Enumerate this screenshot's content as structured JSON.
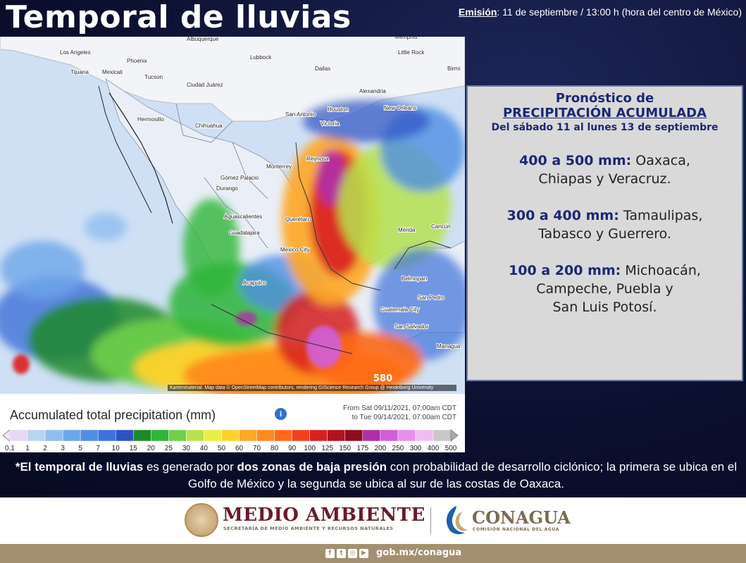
{
  "header": {
    "title": "Temporal de lluvias",
    "emission_label": "Emisión",
    "emission_text": ": 11 de septiembre / 13:00 h (hora del centro de México)"
  },
  "map": {
    "cities": [
      {
        "name": "Los Angeles"
      },
      {
        "name": "Phoenix"
      },
      {
        "name": "Tijuana"
      },
      {
        "name": "Mexicali"
      },
      {
        "name": "Tucson"
      },
      {
        "name": "Albuquerque"
      },
      {
        "name": "Lubbock"
      },
      {
        "name": "Ciudad Juárez"
      },
      {
        "name": "Dallas"
      },
      {
        "name": "Memphis"
      },
      {
        "name": "Little Rock"
      },
      {
        "name": "Hermosillo"
      },
      {
        "name": "Chihuahua"
      },
      {
        "name": "San Antonio"
      },
      {
        "name": "Houston"
      },
      {
        "name": "Alexandria"
      },
      {
        "name": "New Orleans"
      },
      {
        "name": "Victoria"
      },
      {
        "name": "Reynosa"
      },
      {
        "name": "Monterrey"
      },
      {
        "name": "Gómez Palacio"
      },
      {
        "name": "Durango"
      },
      {
        "name": "Aguascalientes"
      },
      {
        "name": "Guadalajara"
      },
      {
        "name": "Querétaro"
      },
      {
        "name": "Mexico City"
      },
      {
        "name": "Acapulco"
      },
      {
        "name": "Mérida"
      },
      {
        "name": "Cancún"
      },
      {
        "name": "Belmopan"
      },
      {
        "name": "San Pedro"
      },
      {
        "name": "Guatemala City"
      },
      {
        "name": "San Salvador"
      },
      {
        "name": "Managua"
      },
      {
        "name": "Birmi"
      }
    ],
    "attribution": "Kartenmaterial: Map data © OpenStreetMap contributors, rendering GIScience Research Group @ Heidelberg University",
    "stamp": "580"
  },
  "legend": {
    "title": "Accumulated total precipitation (mm)",
    "from": "From Sat 09/11/2021, 07:00am CDT",
    "to": "to Tue 09/14/2021, 07:00am CDT",
    "ticks": [
      "0.1",
      "1",
      "2",
      "3",
      "5",
      "7",
      "10",
      "15",
      "20",
      "25",
      "30",
      "40",
      "50",
      "60",
      "70",
      "80",
      "90",
      "100",
      "125",
      "150",
      "175",
      "200",
      "250",
      "300",
      "400",
      "500"
    ],
    "colors": [
      "#e8d8f5",
      "#b9d3f2",
      "#8fbdf0",
      "#6ea6ea",
      "#4f8ee3",
      "#3f72d8",
      "#2d52c2",
      "#1c8a2a",
      "#2fb53a",
      "#6fd04a",
      "#b6e34d",
      "#e9ef45",
      "#ffd22d",
      "#ffa726",
      "#ff8a1f",
      "#ff6a1a",
      "#f2411a",
      "#d8201f",
      "#b5121c",
      "#8e0c1d",
      "#b02ea8",
      "#d15ed9",
      "#e590eb",
      "#f0bdf0",
      "#c8c8c8"
    ]
  },
  "forecast": {
    "heading1": "Pronóstico de",
    "heading2": "PRECIPITACIÓN ACUMULADA",
    "heading3": "Del sábado 11 al lunes 13 de septiembre",
    "items": [
      {
        "range": "400 a 500 mm:",
        "states_a": "Oaxaca,",
        "states_b": "Chiapas y Veracruz.",
        "states_c": ""
      },
      {
        "range": "300 a 400 mm:",
        "states_a": "Tamaulipas,",
        "states_b": "Tabasco y Guerrero.",
        "states_c": ""
      },
      {
        "range": "100 a 200 mm:",
        "states_a": "Michoacán,",
        "states_b": "Campeche, Puebla y",
        "states_c": "San Luis Potosí."
      }
    ]
  },
  "note": {
    "star": "*El ",
    "b1": "temporal de lluvias",
    "t1": " es generado por ",
    "b2": "dos zonas de baja presión",
    "t2": " con probabilidad de desarrollo ciclónico; la primera se ubica en el Golfo de México y la segunda se ubica al sur de las costas de Oaxaca."
  },
  "footer": {
    "ma_title": "MEDIO AMBIENTE",
    "ma_sub": "SECRETARÍA DE MEDIO AMBIENTE Y RECURSOS NATURALES",
    "conagua_title": "CONAGUA",
    "conagua_sub": "COMISIÓN NACIONAL DEL AGUA",
    "social_icons": [
      "facebook-icon",
      "twitter-icon",
      "instagram-icon",
      "youtube-icon"
    ],
    "url": "gob.mx/conagua"
  }
}
